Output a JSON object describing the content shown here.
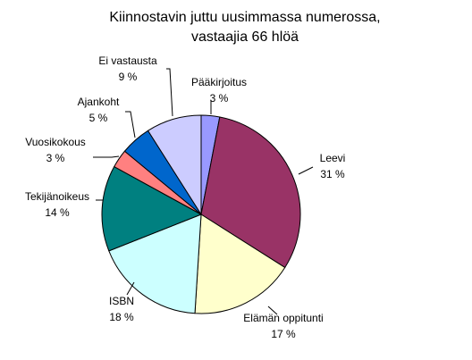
{
  "chart_data": {
    "type": "pie",
    "title": [
      "Kiinnostavin juttu uusimmassa numerossa,",
      "vastaajia 66 hlöä"
    ],
    "slices": [
      {
        "name": "Pääkirjoitus",
        "value": 3,
        "value_label": "3 %",
        "color": "#9999ff"
      },
      {
        "name": "Leevi",
        "value": 31,
        "value_label": "31 %",
        "color": "#993366"
      },
      {
        "name": "Elämän oppitunti",
        "value": 17,
        "value_label": "17 %",
        "color": "#ffffcc"
      },
      {
        "name": "ISBN",
        "value": 18,
        "value_label": "18 %",
        "color": "#ccffff"
      },
      {
        "name": "Tekijänoikeus",
        "value": 14,
        "value_label": "14 %",
        "color": "#008080"
      },
      {
        "name": "Vuosikokous",
        "value": 3,
        "value_label": "3 %",
        "color": "#ff8080"
      },
      {
        "name": "Ajankoht",
        "value": 5,
        "value_label": "5 %",
        "color": "#0066cc"
      },
      {
        "name": "Ei vastausta",
        "value": 9,
        "value_label": "9 %",
        "color": "#ccccff"
      }
    ],
    "start_angle_deg": 0,
    "direction": "clockwise",
    "legend": "none",
    "data_labels": "outside with leader lines"
  }
}
